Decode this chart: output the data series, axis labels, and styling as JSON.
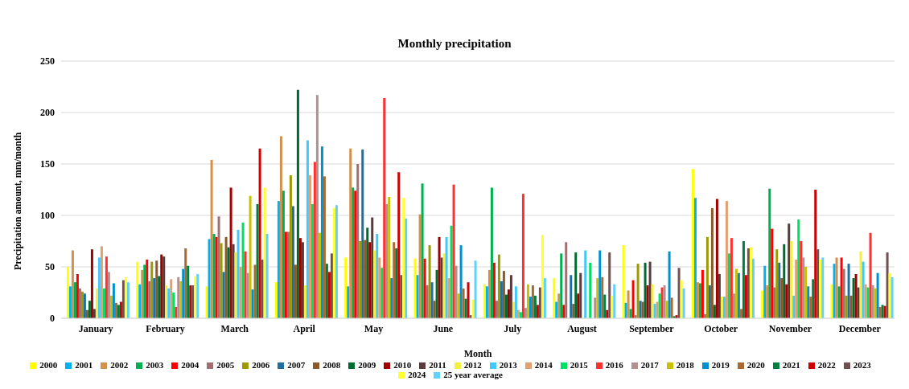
{
  "chart_data": {
    "type": "bar",
    "title": "Monthly precipitation",
    "xlabel": "Month",
    "ylabel": "Precipitation amount, mm/month",
    "categories": [
      "January",
      "February",
      "March",
      "April",
      "May",
      "June",
      "July",
      "August",
      "September",
      "October",
      "November",
      "December"
    ],
    "ylim": [
      0,
      250
    ],
    "yticks": [
      0,
      50,
      100,
      150,
      200,
      250
    ],
    "grid": "y",
    "legend": "bottom",
    "series": [
      {
        "name": "2000",
        "color": "#ffff00",
        "values": [
          50,
          55,
          31,
          35,
          59,
          58,
          33,
          39,
          71,
          145,
          27,
          33
        ]
      },
      {
        "name": "2001",
        "color": "#00b0f0",
        "values": [
          31,
          33,
          77,
          114,
          31,
          42,
          31,
          16,
          15,
          117,
          51,
          53
        ]
      },
      {
        "name": "2002",
        "color": "#d4914a",
        "values": [
          66,
          47,
          154,
          177,
          165,
          101,
          47,
          24,
          27,
          35,
          32,
          59
        ]
      },
      {
        "name": "2003",
        "color": "#00b050",
        "values": [
          35,
          52,
          82,
          124,
          127,
          131,
          127,
          63,
          9,
          34,
          126,
          31
        ]
      },
      {
        "name": "2004",
        "color": "#ff0000",
        "values": [
          43,
          57,
          79,
          84,
          124,
          58,
          54,
          13,
          37,
          47,
          87,
          59
        ]
      },
      {
        "name": "2005",
        "color": "#a07070",
        "values": [
          29,
          36,
          99,
          84,
          150,
          32,
          17,
          74,
          3,
          4,
          30,
          48
        ]
      },
      {
        "name": "2006",
        "color": "#9c9a00",
        "values": [
          26,
          55,
          73,
          139,
          75,
          71,
          62,
          0,
          53,
          79,
          67,
          22
        ]
      },
      {
        "name": "2007",
        "color": "#1f6fa0",
        "values": [
          24,
          39,
          45,
          109,
          164,
          35,
          36,
          42,
          17,
          32,
          54,
          53
        ]
      },
      {
        "name": "2008",
        "color": "#8b5a2b",
        "values": [
          8,
          56,
          79,
          52,
          76,
          17,
          46,
          14,
          16,
          107,
          39,
          22
        ]
      },
      {
        "name": "2009",
        "color": "#006b2f",
        "values": [
          17,
          41,
          69,
          222,
          88,
          47,
          23,
          64,
          54,
          13,
          72,
          39
        ]
      },
      {
        "name": "2010",
        "color": "#a00000",
        "values": [
          67,
          62,
          127,
          78,
          74,
          79,
          28,
          24,
          32,
          116,
          33,
          43
        ]
      },
      {
        "name": "2011",
        "color": "#5a3a3a",
        "values": [
          9,
          60,
          72,
          74,
          98,
          59,
          42,
          44,
          55,
          43,
          92,
          30
        ]
      },
      {
        "name": "2012",
        "color": "#f5f040",
        "values": [
          29,
          32,
          64,
          32,
          66,
          63,
          16,
          0,
          33,
          21,
          75,
          65
        ]
      },
      {
        "name": "2013",
        "color": "#40c8ff",
        "values": [
          59,
          29,
          86,
          173,
          82,
          79,
          31,
          66,
          14,
          21,
          22,
          55
        ]
      },
      {
        "name": "2014",
        "color": "#e0a070",
        "values": [
          70,
          38,
          50,
          139,
          59,
          39,
          8,
          0,
          16,
          114,
          57,
          33
        ]
      },
      {
        "name": "2015",
        "color": "#00e060",
        "values": [
          29,
          25,
          93,
          111,
          49,
          90,
          6,
          54,
          24,
          63,
          96,
          30
        ]
      },
      {
        "name": "2016",
        "color": "#ff3030",
        "values": [
          60,
          11,
          65,
          152,
          214,
          130,
          121,
          0,
          30,
          78,
          75,
          83
        ]
      },
      {
        "name": "2017",
        "color": "#b09090",
        "values": [
          45,
          40,
          44,
          217,
          111,
          51,
          10,
          20,
          32,
          24,
          59,
          32
        ]
      },
      {
        "name": "2018",
        "color": "#c8c000",
        "values": [
          22,
          36,
          119,
          83,
          118,
          24,
          33,
          39,
          17,
          48,
          50,
          29
        ]
      },
      {
        "name": "2019",
        "color": "#0090d0",
        "values": [
          34,
          48,
          28,
          167,
          39,
          71,
          21,
          66,
          65,
          44,
          31,
          44
        ]
      },
      {
        "name": "2020",
        "color": "#a86a30",
        "values": [
          15,
          68,
          52,
          138,
          74,
          29,
          32,
          40,
          20,
          9,
          21,
          11
        ]
      },
      {
        "name": "2021",
        "color": "#008040",
        "values": [
          13,
          51,
          111,
          53,
          68,
          19,
          22,
          23,
          2,
          75,
          38,
          13
        ]
      },
      {
        "name": "2022",
        "color": "#d00000",
        "values": [
          16,
          32,
          165,
          45,
          142,
          35,
          13,
          8,
          3,
          42,
          125,
          12
        ]
      },
      {
        "name": "2023",
        "color": "#705050",
        "values": [
          37,
          32,
          57,
          63,
          42,
          3,
          30,
          64,
          49,
          68,
          67,
          64
        ]
      },
      {
        "name": "2024",
        "color": "#ffff30",
        "values": [
          40,
          41,
          127,
          107,
          117,
          18,
          81,
          22,
          37,
          69,
          57,
          44
        ]
      },
      {
        "name": "25 year average",
        "color": "#60d0ff",
        "values": [
          35,
          43,
          82,
          110,
          97,
          56,
          39,
          33,
          29,
          58,
          59,
          40
        ]
      }
    ]
  }
}
